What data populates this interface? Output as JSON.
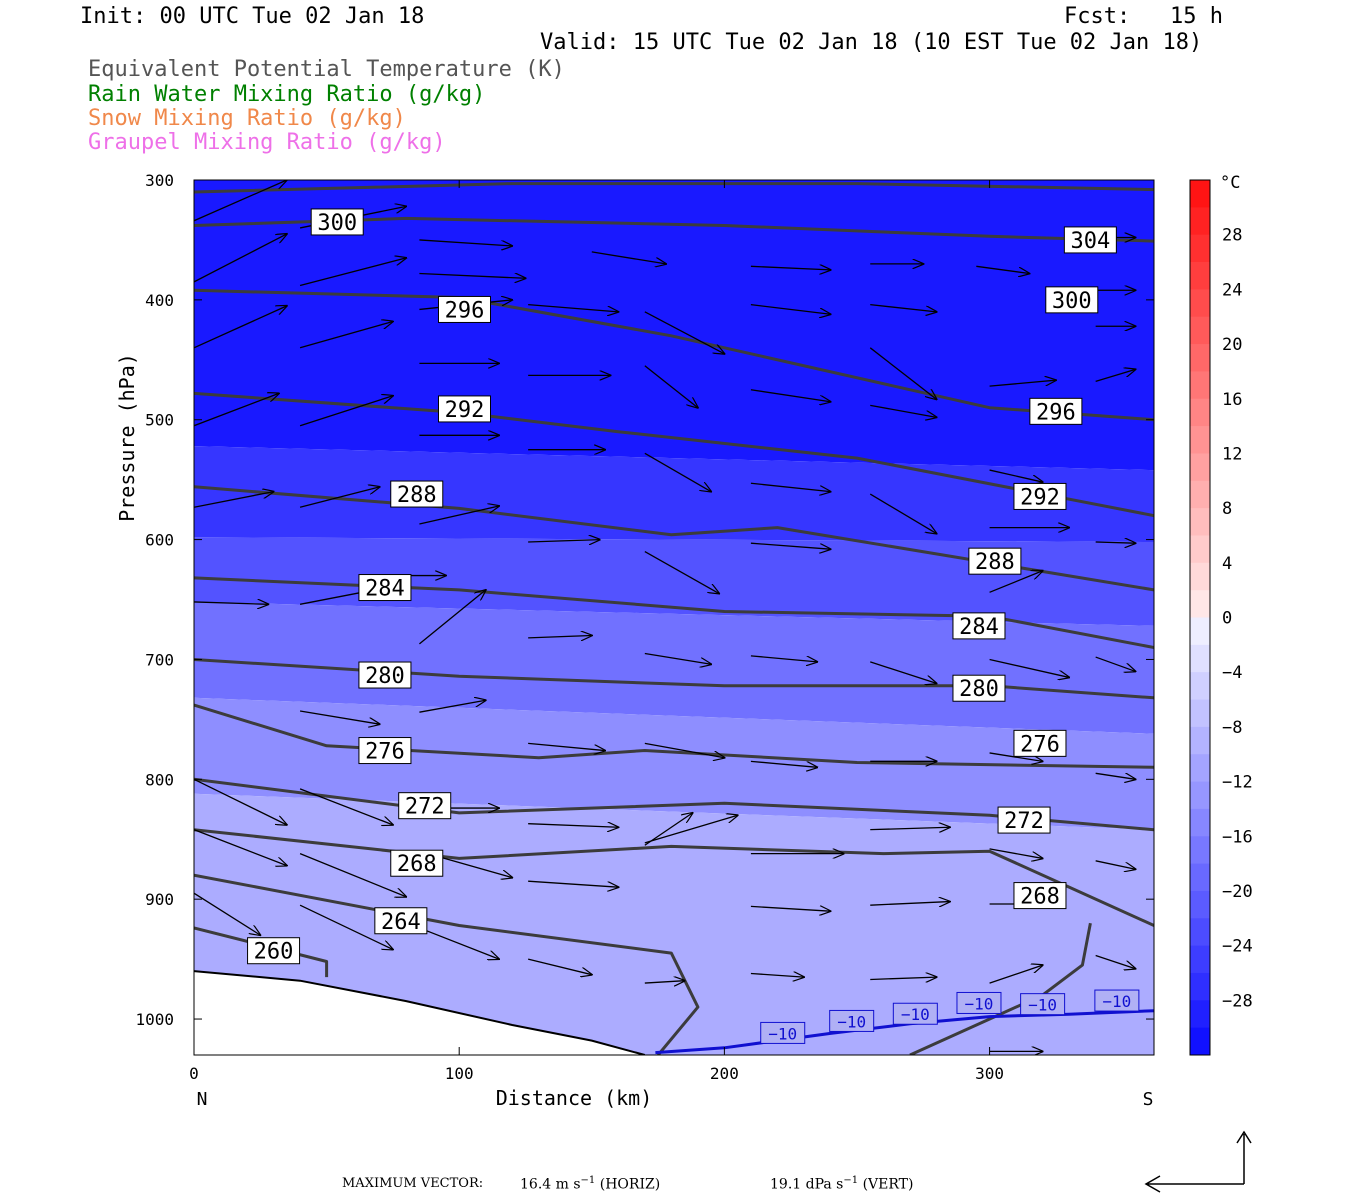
{
  "header": {
    "init": "Init: 00 UTC Tue 02 Jan 18",
    "fcst": "Fcst:   15 h",
    "valid": "Valid: 15 UTC Tue 02 Jan 18 (10 EST Tue 02 Jan 18)"
  },
  "legend": [
    {
      "label": "Equivalent Potential Temperature (K)",
      "color": "#555555"
    },
    {
      "label": "Rain Water Mixing Ratio (g/kg)",
      "color": "#008000"
    },
    {
      "label": "Snow Mixing Ratio (g/kg)",
      "color": "#f0884a"
    },
    {
      "label": "Graupel Mixing Ratio (g/kg)",
      "color": "#ee70e8"
    }
  ],
  "chart_data": {
    "type": "cross-section",
    "xlabel": "Distance (km)",
    "ylabel": "Pressure (hPa)",
    "xlim": [
      0,
      362
    ],
    "ylim": [
      1030,
      300
    ],
    "xticks": [
      0,
      100,
      200,
      300
    ],
    "yticks": [
      300,
      400,
      500,
      600,
      700,
      800,
      900,
      1000
    ],
    "x_end_labels": {
      "left": "N",
      "right": "S"
    },
    "colorbar": {
      "unit": "°C",
      "tick_labels": [
        "28",
        "24",
        "20",
        "16",
        "12",
        "8",
        "4",
        "0",
        "−4",
        "−8",
        "−12",
        "−16",
        "−20",
        "−24",
        "−28"
      ],
      "tick_values": [
        28,
        24,
        20,
        16,
        12,
        8,
        4,
        0,
        -4,
        -8,
        -12,
        -16,
        -20,
        -24,
        -28
      ],
      "range": [
        -32,
        32
      ]
    },
    "temperature_fill": [
      {
        "c": -30,
        "pts": [
          [
            0,
            300
          ],
          [
            362,
            300
          ],
          [
            362,
            542
          ],
          [
            0,
            522
          ]
        ]
      },
      {
        "c": -26,
        "pts": [
          [
            0,
            522
          ],
          [
            362,
            542
          ],
          [
            362,
            602
          ],
          [
            0,
            598
          ]
        ]
      },
      {
        "c": -22,
        "pts": [
          [
            0,
            598
          ],
          [
            362,
            602
          ],
          [
            362,
            672
          ],
          [
            0,
            652
          ]
        ]
      },
      {
        "c": -18,
        "pts": [
          [
            0,
            652
          ],
          [
            362,
            672
          ],
          [
            362,
            762
          ],
          [
            0,
            732
          ]
        ]
      },
      {
        "c": -14,
        "pts": [
          [
            0,
            732
          ],
          [
            362,
            762
          ],
          [
            362,
            842
          ],
          [
            0,
            812
          ]
        ]
      },
      {
        "c": -10,
        "pts": [
          [
            0,
            812
          ],
          [
            362,
            842
          ],
          [
            362,
            1030
          ],
          [
            0,
            1030
          ]
        ]
      }
    ],
    "theta_e_contours": [
      {
        "value": 304,
        "pts": [
          [
            0,
            310
          ],
          [
            120,
            303
          ],
          [
            250,
            303
          ],
          [
            362,
            308
          ]
        ]
      },
      {
        "value": 300,
        "pts": [
          [
            0,
            338
          ],
          [
            80,
            332
          ],
          [
            200,
            338
          ],
          [
            300,
            347
          ],
          [
            362,
            351
          ]
        ]
      },
      {
        "value": 296,
        "pts": [
          [
            0,
            392
          ],
          [
            100,
            398
          ],
          [
            180,
            430
          ],
          [
            300,
            490
          ],
          [
            362,
            500
          ]
        ]
      },
      {
        "value": 292,
        "pts": [
          [
            0,
            478
          ],
          [
            100,
            494
          ],
          [
            160,
            510
          ],
          [
            250,
            532
          ],
          [
            362,
            580
          ]
        ]
      },
      {
        "value": 288,
        "pts": [
          [
            0,
            556
          ],
          [
            100,
            574
          ],
          [
            180,
            596
          ],
          [
            220,
            590
          ],
          [
            362,
            642
          ]
        ]
      },
      {
        "value": 284,
        "pts": [
          [
            0,
            632
          ],
          [
            100,
            642
          ],
          [
            200,
            660
          ],
          [
            300,
            664
          ],
          [
            362,
            690
          ]
        ]
      },
      {
        "value": 280,
        "pts": [
          [
            0,
            700
          ],
          [
            100,
            714
          ],
          [
            200,
            722
          ],
          [
            300,
            722
          ],
          [
            362,
            732
          ]
        ]
      },
      {
        "value": 276,
        "pts": [
          [
            0,
            738
          ],
          [
            50,
            772
          ],
          [
            130,
            782
          ],
          [
            170,
            776
          ],
          [
            250,
            786
          ],
          [
            362,
            790
          ]
        ]
      },
      {
        "value": 272,
        "pts": [
          [
            0,
            800
          ],
          [
            100,
            828
          ],
          [
            200,
            820
          ],
          [
            300,
            830
          ],
          [
            362,
            842
          ]
        ]
      },
      {
        "value": 268,
        "pts": [
          [
            0,
            842
          ],
          [
            100,
            866
          ],
          [
            180,
            856
          ],
          [
            260,
            862
          ],
          [
            300,
            860
          ],
          [
            362,
            922
          ]
        ]
      },
      {
        "value": 264,
        "pts": [
          [
            0,
            880
          ],
          [
            100,
            922
          ],
          [
            180,
            945
          ],
          [
            190,
            990
          ],
          [
            175,
            1030
          ]
        ]
      },
      {
        "value": 260,
        "pts": [
          [
            0,
            924
          ],
          [
            50,
            952
          ],
          [
            50,
            965
          ]
        ]
      },
      {
        "value": 264,
        "pts": [
          [
            270,
            1030
          ],
          [
            320,
            980
          ],
          [
            335,
            955
          ],
          [
            338,
            920
          ]
        ]
      }
    ],
    "theta_e_labels": [
      {
        "t": "300",
        "x": 54,
        "p": 335
      },
      {
        "t": "304",
        "x": 338,
        "p": 350
      },
      {
        "t": "296",
        "x": 102,
        "p": 408
      },
      {
        "t": "300",
        "x": 331,
        "p": 400
      },
      {
        "t": "292",
        "x": 102,
        "p": 491
      },
      {
        "t": "296",
        "x": 325,
        "p": 493
      },
      {
        "t": "288",
        "x": 84,
        "p": 562
      },
      {
        "t": "292",
        "x": 319,
        "p": 564
      },
      {
        "t": "284",
        "x": 72,
        "p": 640
      },
      {
        "t": "288",
        "x": 302,
        "p": 618
      },
      {
        "t": "280",
        "x": 72,
        "p": 713
      },
      {
        "t": "284",
        "x": 296,
        "p": 672
      },
      {
        "t": "276",
        "x": 72,
        "p": 776
      },
      {
        "t": "280",
        "x": 296,
        "p": 724
      },
      {
        "t": "272",
        "x": 87,
        "p": 822
      },
      {
        "t": "276",
        "x": 319,
        "p": 770
      },
      {
        "t": "268",
        "x": 84,
        "p": 870
      },
      {
        "t": "272",
        "x": 313,
        "p": 834
      },
      {
        "t": "264",
        "x": 78,
        "p": 918
      },
      {
        "t": "268",
        "x": 319,
        "p": 897
      },
      {
        "t": "260",
        "x": 30,
        "p": 943
      }
    ],
    "temperature_contour": {
      "value": -10,
      "label": "−10",
      "pts": [
        [
          174,
          1028
        ],
        [
          200,
          1024
        ],
        [
          240,
          1012
        ],
        [
          270,
          1004
        ],
        [
          300,
          998
        ],
        [
          330,
          996
        ],
        [
          362,
          993
        ]
      ],
      "labels": [
        [
          222,
          1012
        ],
        [
          248,
          1002
        ],
        [
          272,
          996
        ],
        [
          296,
          987
        ],
        [
          320,
          988
        ],
        [
          348,
          985
        ]
      ]
    },
    "terrain_pts": [
      [
        0,
        960
      ],
      [
        40,
        968
      ],
      [
        80,
        985
      ],
      [
        120,
        1005
      ],
      [
        150,
        1018
      ],
      [
        170,
        1030
      ]
    ],
    "wind_vectors": [
      [
        0,
        334,
        35,
        300
      ],
      [
        40,
        340,
        80,
        322
      ],
      [
        0,
        385,
        35,
        345
      ],
      [
        40,
        388,
        80,
        365
      ],
      [
        0,
        440,
        35,
        405
      ],
      [
        40,
        440,
        75,
        418
      ],
      [
        0,
        505,
        32,
        478
      ],
      [
        40,
        505,
        75,
        480
      ],
      [
        0,
        573,
        30,
        560
      ],
      [
        40,
        573,
        70,
        556
      ],
      [
        0,
        652,
        28,
        654
      ],
      [
        40,
        654,
        68,
        642
      ],
      [
        40,
        743,
        70,
        754
      ],
      [
        0,
        800,
        35,
        838
      ],
      [
        40,
        808,
        75,
        838
      ],
      [
        0,
        842,
        35,
        872
      ],
      [
        0,
        895,
        25,
        930
      ],
      [
        40,
        862,
        80,
        898
      ],
      [
        40,
        905,
        75,
        942
      ],
      [
        80,
        630,
        95,
        630
      ],
      [
        85,
        350,
        120,
        355
      ],
      [
        85,
        378,
        125,
        382
      ],
      [
        85,
        408,
        120,
        400
      ],
      [
        85,
        453,
        115,
        453
      ],
      [
        85,
        513,
        115,
        513
      ],
      [
        85,
        587,
        115,
        572
      ],
      [
        85,
        687,
        110,
        642
      ],
      [
        85,
        744,
        110,
        734
      ],
      [
        85,
        824,
        115,
        824
      ],
      [
        85,
        860,
        120,
        882
      ],
      [
        85,
        924,
        115,
        950
      ],
      [
        126,
        404,
        160,
        410
      ],
      [
        126,
        463,
        157,
        463
      ],
      [
        126,
        525,
        155,
        525
      ],
      [
        126,
        602,
        153,
        600
      ],
      [
        126,
        682,
        150,
        680
      ],
      [
        126,
        770,
        155,
        776
      ],
      [
        126,
        837,
        160,
        840
      ],
      [
        126,
        885,
        160,
        890
      ],
      [
        126,
        950,
        150,
        963
      ],
      [
        150,
        360,
        178,
        370
      ],
      [
        170,
        455,
        190,
        490
      ],
      [
        170,
        410,
        200,
        445
      ],
      [
        170,
        528,
        195,
        560
      ],
      [
        170,
        610,
        198,
        645
      ],
      [
        170,
        695,
        195,
        704
      ],
      [
        170,
        770,
        200,
        782
      ],
      [
        170,
        853,
        205,
        830
      ],
      [
        170,
        855,
        188,
        828
      ],
      [
        170,
        970,
        185,
        968
      ],
      [
        210,
        372,
        240,
        375
      ],
      [
        210,
        404,
        240,
        412
      ],
      [
        210,
        475,
        240,
        485
      ],
      [
        210,
        553,
        240,
        560
      ],
      [
        210,
        603,
        240,
        608
      ],
      [
        210,
        697,
        235,
        702
      ],
      [
        210,
        785,
        235,
        790
      ],
      [
        210,
        862,
        245,
        862
      ],
      [
        210,
        906,
        240,
        910
      ],
      [
        210,
        962,
        230,
        965
      ],
      [
        255,
        370,
        275,
        370
      ],
      [
        255,
        404,
        280,
        410
      ],
      [
        255,
        440,
        280,
        483
      ],
      [
        255,
        488,
        280,
        498
      ],
      [
        255,
        562,
        280,
        595
      ],
      [
        255,
        702,
        280,
        720
      ],
      [
        255,
        785,
        280,
        785
      ],
      [
        255,
        842,
        285,
        840
      ],
      [
        255,
        905,
        285,
        902
      ],
      [
        255,
        967,
        280,
        965
      ],
      [
        295,
        372,
        315,
        378
      ],
      [
        300,
        472,
        325,
        467
      ],
      [
        300,
        542,
        320,
        552
      ],
      [
        300,
        590,
        330,
        590
      ],
      [
        300,
        644,
        320,
        626
      ],
      [
        300,
        700,
        330,
        715
      ],
      [
        300,
        778,
        320,
        785
      ],
      [
        300,
        858,
        320,
        866
      ],
      [
        300,
        904,
        320,
        904
      ],
      [
        300,
        970,
        320,
        955
      ],
      [
        300,
        1027,
        320,
        1027
      ],
      [
        340,
        348,
        355,
        348
      ],
      [
        340,
        392,
        355,
        392
      ],
      [
        340,
        422,
        355,
        422
      ],
      [
        340,
        468,
        355,
        458
      ],
      [
        340,
        602,
        355,
        603
      ],
      [
        340,
        698,
        355,
        710
      ],
      [
        340,
        795,
        355,
        800
      ],
      [
        340,
        868,
        355,
        875
      ],
      [
        340,
        947,
        355,
        958
      ]
    ],
    "reference_vector": {
      "horiz": "16.4 m s",
      "vert": "19.1 dPa s"
    }
  },
  "footer": {
    "prefix": "MAXIMUM VECTOR:",
    "horiz_val": "16.4 m s",
    "exp": "−1",
    "horiz_tag": "(HORIZ)",
    "vert_val": "19.1 dPa s",
    "vert_tag": "(VERT)"
  }
}
